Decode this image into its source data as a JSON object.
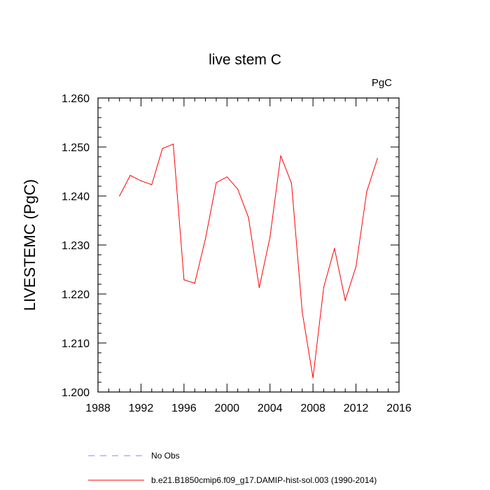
{
  "chart_data": {
    "type": "line",
    "title": "live stem C",
    "units_label": "PgC",
    "ylabel": "LIVESTEMC  (PgC)",
    "xlabel": "",
    "xlim": [
      1988,
      2016
    ],
    "ylim": [
      1.2,
      1.26
    ],
    "x_ticks": [
      "1988",
      "1992",
      "1996",
      "2000",
      "2004",
      "2008",
      "2012",
      "2016"
    ],
    "y_ticks": [
      "1.200",
      "1.210",
      "1.220",
      "1.230",
      "1.240",
      "1.250",
      "1.260"
    ],
    "series": [
      {
        "name": "b.e21.B1850cmip6.f09_g17.DAMIP-hist-sol.003 (1990-2014)",
        "color": "#ff0000",
        "style": "solid",
        "x": [
          1990,
          1991,
          1992,
          1993,
          1994,
          1995,
          1996,
          1997,
          1998,
          1999,
          2000,
          2001,
          2002,
          2003,
          2004,
          2005,
          2006,
          2007,
          2008,
          2009,
          2010,
          2011,
          2012,
          2013,
          2014
        ],
        "y": [
          1.24,
          1.2442,
          1.2431,
          1.2423,
          1.2497,
          1.2506,
          1.2229,
          1.2222,
          1.2313,
          1.2427,
          1.2439,
          1.2414,
          1.2356,
          1.2213,
          1.2316,
          1.2482,
          1.2426,
          1.2163,
          1.2029,
          1.2214,
          1.2293,
          1.2187,
          1.2256,
          1.2409,
          1.2477
        ]
      }
    ],
    "legend": {
      "placement": "bottom",
      "entries": [
        {
          "label": "No Obs",
          "color": "#8080ff",
          "style": "dashed"
        },
        {
          "label": "b.e21.B1850cmip6.f09_g17.DAMIP-hist-sol.003 (1990-2014)",
          "color": "#ff0000",
          "style": "solid"
        }
      ]
    },
    "grid": false
  }
}
